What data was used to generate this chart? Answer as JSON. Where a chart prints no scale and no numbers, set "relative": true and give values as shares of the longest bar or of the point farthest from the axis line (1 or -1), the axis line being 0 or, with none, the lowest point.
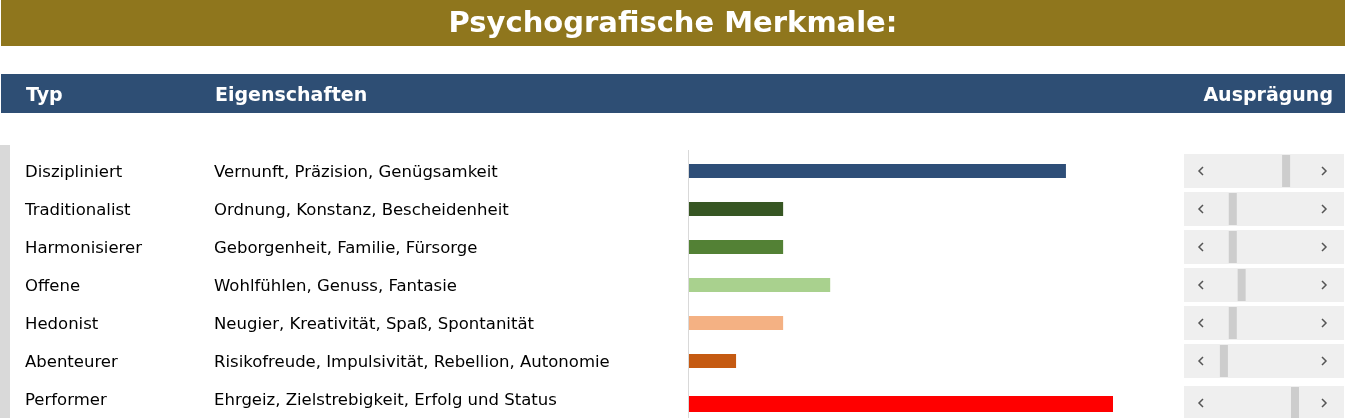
{
  "chart_data": {
    "type": "bar",
    "orientation": "horizontal",
    "relative": true,
    "title": "Psychografische Merkmale:",
    "categories": [
      "Diszipliniert",
      "Traditionalist",
      "Harmonisierer",
      "Offene",
      "Hedonist",
      "Abenteurer",
      "Performer"
    ],
    "values": [
      0.889,
      0.222,
      0.222,
      0.333,
      0.222,
      0.111,
      1
    ],
    "colors": [
      "#2e4e78",
      "#375623",
      "#538135",
      "#a9d18e",
      "#f4b183",
      "#c55a11",
      "#ff0000"
    ],
    "annotations": [
      "Typ",
      "Eigenschaften",
      "Ausprägung",
      "Vernunft, Präzision, Genügsamkeit",
      "Ordnung, Konstanz, Bescheidenheit",
      "Geborgenheit, Familie, Fürsorge",
      "Wohlfühlen, Genuss, Fantasie",
      "Neugier, Kreativität, Spaß, Spontanität",
      "Risikofreude, Impulsivität, Rebellion, Autonomie",
      "Ehrgeiz, Zielstrebigkeit, Erfolg und Status"
    ]
  }
}
